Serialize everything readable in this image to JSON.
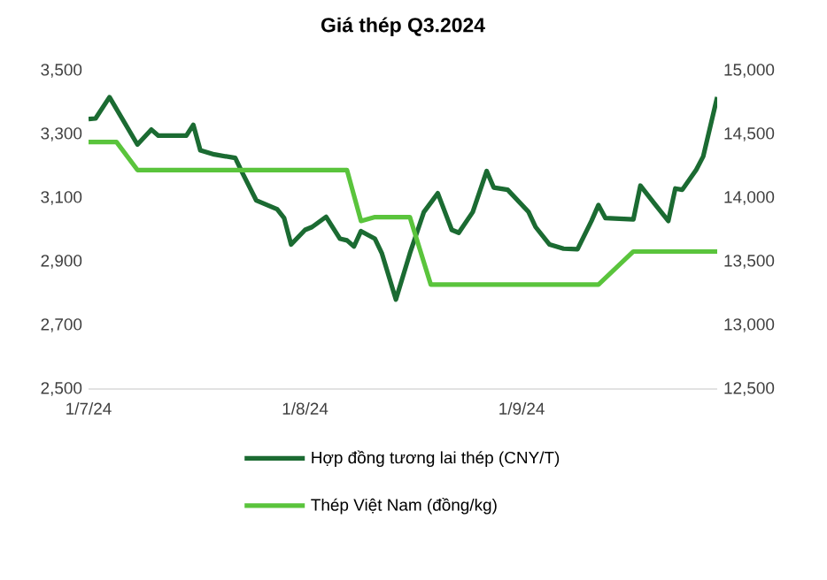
{
  "chart_data": {
    "type": "line",
    "title": "Giá thép Q3.2024",
    "xlim": [
      "2024-07-01",
      "2024-09-29"
    ],
    "xticks": [
      {
        "value": "2024-07-01",
        "label": "1/7/24"
      },
      {
        "value": "2024-08-01",
        "label": "1/8/24"
      },
      {
        "value": "2024-09-01",
        "label": "1/9/24"
      }
    ],
    "ylim": [
      2500,
      3500
    ],
    "yticks": [
      {
        "value": 2500,
        "label": "2,500"
      },
      {
        "value": 2700,
        "label": "2,700"
      },
      {
        "value": 2900,
        "label": "2,900"
      },
      {
        "value": 3100,
        "label": "3,100"
      },
      {
        "value": 3300,
        "label": "3,300"
      },
      {
        "value": 3500,
        "label": "3,500"
      }
    ],
    "y2lim": [
      12500,
      15000
    ],
    "y2ticks": [
      {
        "value": 12500,
        "label": "12,500"
      },
      {
        "value": 13000,
        "label": "13,000"
      },
      {
        "value": 13500,
        "label": "13,500"
      },
      {
        "value": 14000,
        "label": "14,000"
      },
      {
        "value": 14500,
        "label": "14,500"
      },
      {
        "value": 15000,
        "label": "15,000"
      }
    ],
    "legend": "bottom",
    "grid": false,
    "marker": "none",
    "series": [
      {
        "name": "Hợp đồng tương lai thép (CNY/T)",
        "color": "#1b6b32",
        "x": [
          "2024-07-01",
          "2024-07-02",
          "2024-07-04",
          "2024-07-08",
          "2024-07-10",
          "2024-07-11",
          "2024-07-15",
          "2024-07-16",
          "2024-07-17",
          "2024-07-19",
          "2024-07-22",
          "2024-07-23",
          "2024-07-25",
          "2024-07-28",
          "2024-07-29",
          "2024-07-30",
          "2024-08-01",
          "2024-08-02",
          "2024-08-04",
          "2024-08-06",
          "2024-08-07",
          "2024-08-08",
          "2024-08-09",
          "2024-08-11",
          "2024-08-12",
          "2024-08-14",
          "2024-08-16",
          "2024-08-18",
          "2024-08-20",
          "2024-08-22",
          "2024-08-23",
          "2024-08-25",
          "2024-08-27",
          "2024-08-28",
          "2024-08-30",
          "2024-09-02",
          "2024-09-03",
          "2024-09-05",
          "2024-09-07",
          "2024-09-09",
          "2024-09-11",
          "2024-09-12",
          "2024-09-13",
          "2024-09-17",
          "2024-09-18",
          "2024-09-20",
          "2024-09-22",
          "2024-09-23",
          "2024-09-24",
          "2024-09-26",
          "2024-09-27",
          "2024-09-29"
        ],
        "values": [
          3348,
          3350,
          3417,
          3268,
          3315,
          3296,
          3296,
          3330,
          3250,
          3237,
          3226,
          3180,
          3093,
          3065,
          3037,
          2954,
          3000,
          3009,
          3041,
          2972,
          2967,
          2948,
          2996,
          2972,
          2926,
          2781,
          2926,
          3056,
          3115,
          3000,
          2991,
          3056,
          3185,
          3133,
          3126,
          3056,
          3009,
          2954,
          2941,
          2939,
          3028,
          3078,
          3037,
          3033,
          3139,
          3083,
          3028,
          3130,
          3126,
          3189,
          3231,
          3417
        ]
      },
      {
        "name": "Thép Việt Nam (đồng/kg)",
        "color": "#5ac43c",
        "axis": "y2",
        "x": [
          "2024-07-01",
          "2024-07-05",
          "2024-07-08",
          "2024-08-07",
          "2024-08-09",
          "2024-08-11",
          "2024-08-16",
          "2024-08-19",
          "2024-09-12",
          "2024-09-17",
          "2024-09-29"
        ],
        "values": [
          14440,
          14440,
          14220,
          14220,
          13820,
          13850,
          13850,
          13320,
          13320,
          13580,
          13580
        ]
      }
    ]
  }
}
